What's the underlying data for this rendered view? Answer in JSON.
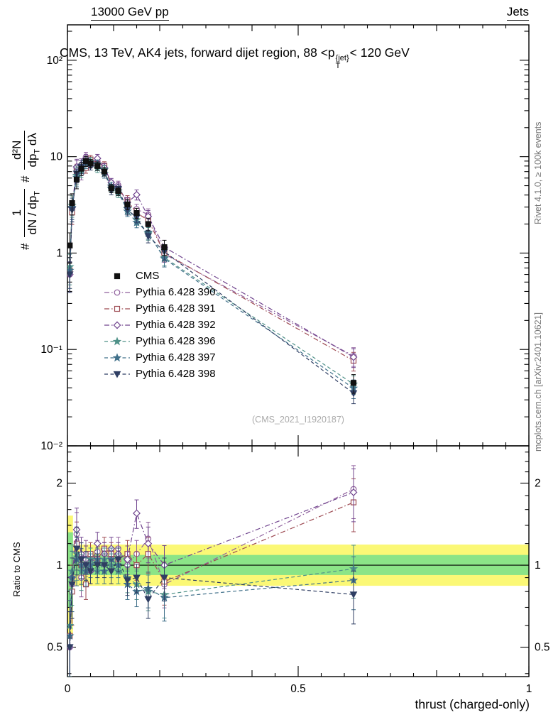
{
  "header": {
    "left": "13000 GeV pp",
    "right": "Jets"
  },
  "title": {
    "part1": "CMS, 13 TeV, AK4 jets, forward dijet region, 88 <p",
    "sup": "{jet}",
    "sub": "T",
    "part2": "< 120 GeV"
  },
  "ylabel": {
    "hash1": "#",
    "f1num": "1",
    "f1den_a": "dN / dp",
    "f1den_sub": "T",
    "hash2": "#",
    "f2num": "d²N",
    "f2den_a": "dp",
    "f2den_sub": "T",
    "f2den_b": " dλ"
  },
  "ratio_label": "Ratio to CMS",
  "xlabel": "thrust (charged-only)",
  "watermark": "(CMS_2021_I1920187)",
  "side_notes": {
    "top": "Rivet 4.1.0, ≥ 100k events",
    "bottom": "mcplots.cern.ch [arXiv:2401.10621]"
  },
  "colors": {
    "frame": "#000000",
    "watermark": "#aaaaaa",
    "side_note": "#787878",
    "band_yellow": "#fbf876",
    "band_green": "#8be487"
  },
  "chart_data": {
    "type": "line",
    "title": "CMS, 13 TeV, AK4 jets, forward dijet region, 88 <pT{jet}< 120 GeV",
    "xlabel": "thrust (charged-only)",
    "ylabel": "# 1/(dN/dpT) d²N/(dpT dλ)",
    "ratio_ylabel": "Ratio to CMS",
    "legend_position": "left-middle",
    "grid": false,
    "xlim": [
      0,
      1
    ],
    "ylim_main": [
      0.01,
      233
    ],
    "ylim_ratio": [
      0.39,
      2.74
    ],
    "x": [
      0.005,
      0.01,
      0.02,
      0.03,
      0.04,
      0.05,
      0.065,
      0.08,
      0.095,
      0.11,
      0.13,
      0.15,
      0.175,
      0.21,
      0.62
    ],
    "cms": {
      "name": "CMS",
      "color": "#111111",
      "marker": "square",
      "filled": true,
      "values": [
        1.2,
        3.3,
        5.8,
        7.5,
        9.0,
        8.5,
        8.0,
        7.0,
        4.7,
        4.4,
        3.2,
        2.6,
        2.0,
        1.15,
        0.045
      ],
      "err_frac": [
        0.35,
        0.25,
        0.2,
        0.15,
        0.12,
        0.1,
        0.1,
        0.1,
        0.1,
        0.1,
        0.12,
        0.12,
        0.15,
        0.18,
        0.22
      ]
    },
    "series": [
      {
        "name": "Pythia 6.428 390",
        "color": "#8f5f9c",
        "marker": "circle",
        "filled": false,
        "dash": "dashdot",
        "ratio": [
          0.5,
          0.85,
          1.3,
          0.9,
          1.1,
          1.05,
          1.12,
          1.1,
          1.05,
          1.15,
          1.0,
          1.1,
          1.25,
          0.85,
          1.9
        ]
      },
      {
        "name": "Pythia 6.428 391",
        "color": "#9d4a52",
        "marker": "square",
        "filled": false,
        "dash": "dashdot",
        "ratio": [
          0.55,
          0.8,
          1.2,
          1.0,
          0.85,
          1.1,
          1.05,
          1.15,
          1.1,
          1.05,
          1.1,
          1.0,
          1.1,
          0.87,
          1.7
        ]
      },
      {
        "name": "Pythia 6.428 392",
        "color": "#70448e",
        "marker": "diamond",
        "filled": false,
        "dash": "dashdot",
        "ratio": [
          0.5,
          0.9,
          1.35,
          1.1,
          1.05,
          0.95,
          1.2,
          1.1,
          1.15,
          1.1,
          1.05,
          1.55,
          1.2,
          1.0,
          1.85
        ]
      },
      {
        "name": "Pythia 6.428 396",
        "color": "#4f9188",
        "marker": "star",
        "filled": true,
        "dash": "dash",
        "ratio": [
          0.6,
          0.95,
          1.1,
          0.95,
          1.0,
          1.05,
          0.95,
          1.05,
          1.0,
          0.95,
          0.9,
          0.85,
          0.8,
          0.78,
          0.97
        ]
      },
      {
        "name": "Pythia 6.428 397",
        "color": "#40708a",
        "marker": "star",
        "filled": true,
        "dash": "dash",
        "ratio": [
          0.55,
          0.9,
          1.05,
          1.0,
          0.95,
          1.0,
          1.05,
          0.95,
          1.05,
          1.0,
          0.85,
          0.8,
          0.82,
          0.76,
          0.88
        ]
      },
      {
        "name": "Pythia 6.428 398",
        "color": "#2f3e63",
        "marker": "triangle-down",
        "filled": true,
        "dash": "dash",
        "ratio": [
          0.5,
          0.85,
          1.15,
          1.05,
          1.0,
          0.95,
          1.0,
          1.0,
          0.95,
          1.05,
          0.88,
          0.9,
          0.75,
          0.9,
          0.78
        ]
      }
    ],
    "bands": {
      "yellow": [
        0.84,
        1.19
      ],
      "green": [
        0.92,
        1.09
      ],
      "first_bin": {
        "x": [
          0,
          0.012
        ],
        "yellow": [
          0.55,
          1.52
        ],
        "green": [
          0.7,
          1.32
        ]
      }
    },
    "xticks": [
      {
        "v": 0,
        "label": "0"
      },
      {
        "v": 0.5,
        "label": "0.5"
      },
      {
        "v": 1,
        "label": "1"
      }
    ],
    "yticks_main": [
      {
        "v": 100,
        "label": "10²"
      },
      {
        "v": 10,
        "label": "10"
      },
      {
        "v": 1,
        "label": "1"
      },
      {
        "v": 0.1,
        "label": "10⁻¹"
      },
      {
        "v": 0.01,
        "label": "10⁻²"
      }
    ],
    "yticks_ratio": [
      {
        "v": 0.5,
        "label": "0.5"
      },
      {
        "v": 1,
        "label": "1"
      },
      {
        "v": 2,
        "label": "2"
      }
    ],
    "yticks_ratio_minor": [
      0.4,
      0.6,
      0.7,
      0.8,
      0.9,
      1.2,
      1.4,
      1.6,
      1.8,
      2.2,
      2.4,
      2.6
    ]
  }
}
